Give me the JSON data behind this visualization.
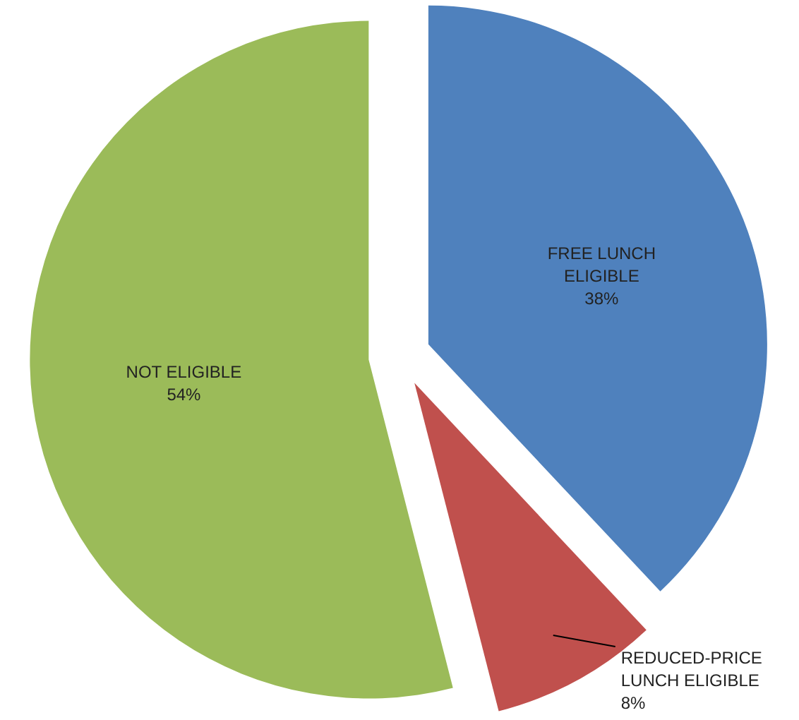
{
  "chart_data": {
    "type": "pie",
    "categories": [
      "FREE LUNCH ELIGIBLE",
      "REDUCED-PRICE LUNCH ELIGIBLE",
      "NOT ELIGIBLE"
    ],
    "values": [
      38,
      8,
      54
    ],
    "colors": [
      "#4f81bd",
      "#c0504d",
      "#9bbb59"
    ],
    "value_labels": [
      "38%",
      "8%",
      "54%"
    ]
  }
}
